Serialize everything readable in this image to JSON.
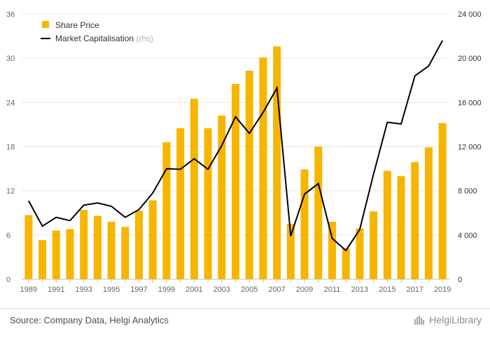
{
  "chart_data": {
    "type": "bar",
    "x": [
      "1989",
      "1990",
      "1991",
      "1992",
      "1993",
      "1994",
      "1995",
      "1996",
      "1997",
      "1998",
      "1999",
      "2000",
      "2001",
      "2002",
      "2003",
      "2004",
      "2005",
      "2006",
      "2007",
      "2008",
      "2009",
      "2010",
      "2011",
      "2012",
      "2013",
      "2014",
      "2015",
      "2016",
      "2017",
      "2018",
      "2019"
    ],
    "tick_labels_x": [
      "1989",
      "1991",
      "1993",
      "1995",
      "1997",
      "1999",
      "2001",
      "2003",
      "2005",
      "2007",
      "2009",
      "2011",
      "2013",
      "2015",
      "2017",
      "2019"
    ],
    "left_axis": {
      "ticks": [
        "0",
        "6",
        "12",
        "18",
        "24",
        "30",
        "36"
      ],
      "ylim": [
        0,
        36
      ]
    },
    "right_axis": {
      "ticks": [
        "0",
        "4 000",
        "8 000",
        "12 000",
        "16 000",
        "20 000",
        "24 000"
      ],
      "ylim": [
        0,
        24000
      ]
    },
    "series": [
      {
        "name": "Share Price",
        "type": "bar",
        "axis": "left",
        "color": "#f7b500",
        "values": [
          8.7,
          5.3,
          6.6,
          6.8,
          9.4,
          8.6,
          7.8,
          7.1,
          9.3,
          10.7,
          18.6,
          20.5,
          24.5,
          20.5,
          22.2,
          26.5,
          28.3,
          30.1,
          31.6,
          7.5,
          14.9,
          18.0,
          7.8,
          4.2,
          6.9,
          9.2,
          14.7,
          14.0,
          15.9,
          17.9,
          21.2
        ]
      },
      {
        "name": "Market Capitalisation",
        "axis_note": "(rhs)",
        "type": "line",
        "axis": "right",
        "color": "#000000",
        "values": [
          7100,
          4800,
          5600,
          5300,
          6700,
          6900,
          6600,
          5600,
          6300,
          7800,
          10000,
          9950,
          10900,
          9950,
          12100,
          14700,
          13200,
          15100,
          17300,
          3900,
          7700,
          8650,
          3700,
          2600,
          4500,
          9500,
          14200,
          14050,
          18400,
          19300,
          21600
        ]
      }
    ],
    "grid": "horizontal"
  },
  "footer": {
    "source": "Source: Company Data, Helgi Analytics",
    "brand": "HelgiLibrary"
  },
  "colors": {
    "bar": "#f7b500",
    "line": "#000000",
    "grid": "#e6e6e6",
    "axis_text": "#666666"
  }
}
